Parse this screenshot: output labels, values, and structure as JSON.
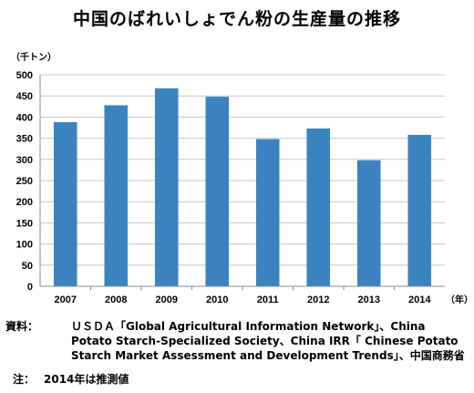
{
  "chart_data": {
    "type": "bar",
    "title": "中国のばれいしょでん粉の生産量の推移",
    "ylabel": "（千トン）",
    "xlabel": "（年）",
    "categories": [
      "2007",
      "2008",
      "2009",
      "2010",
      "2011",
      "2012",
      "2013",
      "2014"
    ],
    "values": [
      388,
      428,
      468,
      448,
      348,
      373,
      298,
      358
    ],
    "ylim": [
      0,
      500
    ],
    "yticks": [
      0,
      50,
      100,
      150,
      200,
      250,
      300,
      350,
      400,
      450,
      500
    ],
    "grid": true,
    "legend": "none",
    "bar_color": "#3b83c0"
  },
  "footer": {
    "source_label": "資料：",
    "source_text": "ＵＳＤＡ「Global Agricultural Information Network」、China Potato Starch-Specialized Society、China IRR「 Chinese Potato Starch Market Assessment and Development Trends」、中国商務省",
    "note_label": "注：",
    "note_text": "2014年は推測値"
  }
}
